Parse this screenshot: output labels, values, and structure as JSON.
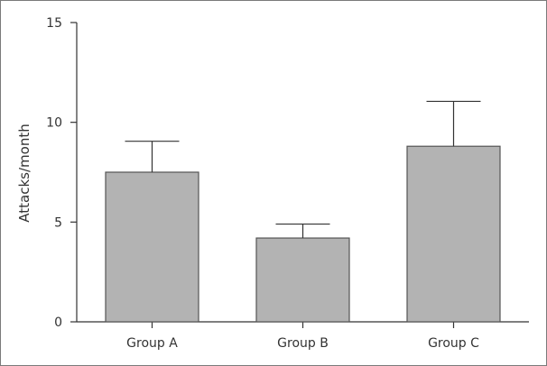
{
  "chart_data": {
    "type": "bar",
    "title": "",
    "xlabel": "",
    "ylabel": "Attacks/month",
    "categories": [
      "Group A",
      "Group B",
      "Group C"
    ],
    "values": [
      7.5,
      4.2,
      8.8
    ],
    "error_upper": [
      9.05,
      4.9,
      11.05
    ],
    "ylim": [
      0,
      15
    ],
    "yticks": [
      0,
      5,
      10,
      15
    ],
    "ytick_labels": [
      "0",
      "5",
      "10",
      "15"
    ],
    "grid": false,
    "legend": "none",
    "bar_color": "#b3b3b3",
    "bar_edge_color": "#555555"
  }
}
